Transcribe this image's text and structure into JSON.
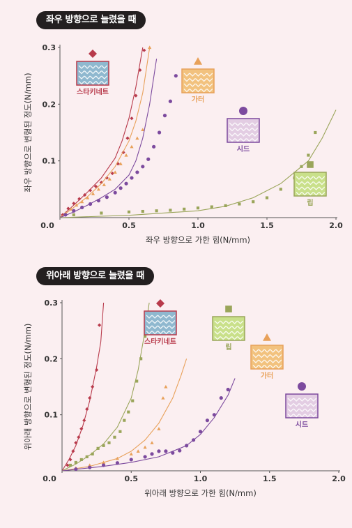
{
  "chart_data": [
    {
      "type": "scatter",
      "title": "좌우 방향으로 늘렸을 때",
      "xlabel": "좌우 방향으로 가한 힘(N/mm)",
      "ylabel": "좌우 방향으로 변형된 정도(N/mm)",
      "xlim": [
        0,
        2.0
      ],
      "ylim": [
        0,
        0.3
      ],
      "x_ticks": [
        "0.0",
        "0.5",
        "1.0",
        "1.5",
        "2.0"
      ],
      "y_ticks": [
        "0.1",
        "0.2",
        "0.3"
      ],
      "series": [
        {
          "name": "스타키네트",
          "marker": "diamond",
          "color": "#b83a4b",
          "points": [
            [
              0.02,
              0.005
            ],
            [
              0.06,
              0.016
            ],
            [
              0.1,
              0.025
            ],
            [
              0.14,
              0.033
            ],
            [
              0.18,
              0.04
            ],
            [
              0.22,
              0.048
            ],
            [
              0.26,
              0.055
            ],
            [
              0.3,
              0.062
            ],
            [
              0.34,
              0.07
            ],
            [
              0.38,
              0.078
            ],
            [
              0.42,
              0.095
            ],
            [
              0.46,
              0.115
            ],
            [
              0.49,
              0.14
            ],
            [
              0.52,
              0.175
            ],
            [
              0.55,
              0.215
            ],
            [
              0.58,
              0.26
            ],
            [
              0.61,
              0.295
            ]
          ],
          "fit": [
            [
              0.0,
              0.0
            ],
            [
              0.1,
              0.022
            ],
            [
              0.2,
              0.045
            ],
            [
              0.3,
              0.07
            ],
            [
              0.4,
              0.105
            ],
            [
              0.45,
              0.135
            ],
            [
              0.5,
              0.175
            ],
            [
              0.55,
              0.23
            ],
            [
              0.6,
              0.3
            ]
          ]
        },
        {
          "name": "가터",
          "marker": "triangle",
          "color": "#e8a15a",
          "points": [
            [
              0.04,
              0.008
            ],
            [
              0.08,
              0.015
            ],
            [
              0.12,
              0.022
            ],
            [
              0.16,
              0.028
            ],
            [
              0.2,
              0.035
            ],
            [
              0.24,
              0.042
            ],
            [
              0.28,
              0.05
            ],
            [
              0.32,
              0.058
            ],
            [
              0.36,
              0.068
            ],
            [
              0.4,
              0.08
            ],
            [
              0.44,
              0.095
            ],
            [
              0.48,
              0.11
            ],
            [
              0.52,
              0.125
            ],
            [
              0.56,
              0.14
            ],
            [
              0.6,
              0.155
            ],
            [
              0.65,
              0.3
            ]
          ],
          "fit": [
            [
              0.0,
              0.0
            ],
            [
              0.1,
              0.018
            ],
            [
              0.2,
              0.037
            ],
            [
              0.3,
              0.06
            ],
            [
              0.4,
              0.09
            ],
            [
              0.5,
              0.135
            ],
            [
              0.55,
              0.17
            ],
            [
              0.6,
              0.22
            ],
            [
              0.65,
              0.3
            ]
          ]
        },
        {
          "name": "시드",
          "marker": "circle",
          "color": "#7c4a9e",
          "points": [
            [
              0.04,
              0.005
            ],
            [
              0.1,
              0.012
            ],
            [
              0.16,
              0.018
            ],
            [
              0.22,
              0.024
            ],
            [
              0.28,
              0.03
            ],
            [
              0.34,
              0.036
            ],
            [
              0.4,
              0.044
            ],
            [
              0.44,
              0.052
            ],
            [
              0.48,
              0.06
            ],
            [
              0.52,
              0.07
            ],
            [
              0.56,
              0.08
            ],
            [
              0.6,
              0.09
            ],
            [
              0.64,
              0.103
            ],
            [
              0.68,
              0.125
            ],
            [
              0.72,
              0.15
            ],
            [
              0.76,
              0.18
            ],
            [
              0.8,
              0.205
            ],
            [
              0.84,
              0.25
            ]
          ],
          "fit": [
            [
              0.0,
              0.0
            ],
            [
              0.1,
              0.01
            ],
            [
              0.2,
              0.022
            ],
            [
              0.3,
              0.035
            ],
            [
              0.4,
              0.05
            ],
            [
              0.5,
              0.075
            ],
            [
              0.55,
              0.1
            ],
            [
              0.6,
              0.14
            ],
            [
              0.65,
              0.2
            ],
            [
              0.7,
              0.28
            ]
          ]
        },
        {
          "name": "립",
          "marker": "square",
          "color": "#9aa55a",
          "points": [
            [
              0.1,
              0.005
            ],
            [
              0.3,
              0.008
            ],
            [
              0.5,
              0.01
            ],
            [
              0.6,
              0.011
            ],
            [
              0.7,
              0.012
            ],
            [
              0.8,
              0.013
            ],
            [
              0.9,
              0.015
            ],
            [
              1.0,
              0.017
            ],
            [
              1.1,
              0.019
            ],
            [
              1.2,
              0.021
            ],
            [
              1.3,
              0.024
            ],
            [
              1.4,
              0.028
            ],
            [
              1.5,
              0.035
            ],
            [
              1.6,
              0.05
            ],
            [
              1.7,
              0.07
            ],
            [
              1.75,
              0.09
            ],
            [
              1.8,
              0.11
            ],
            [
              1.85,
              0.15
            ]
          ],
          "fit": [
            [
              0.0,
              0.0
            ],
            [
              0.5,
              0.004
            ],
            [
              1.0,
              0.012
            ],
            [
              1.2,
              0.02
            ],
            [
              1.4,
              0.035
            ],
            [
              1.6,
              0.06
            ],
            [
              1.8,
              0.1
            ],
            [
              1.9,
              0.14
            ],
            [
              2.0,
              0.19
            ]
          ]
        }
      ]
    },
    {
      "type": "scatter",
      "title": "위아래 방향으로 늘렸을 때",
      "xlabel": "위아래 방향으로 가한 힘(N/mm)",
      "ylabel": "위아래 방향으로 변형된 정도(N/mm)",
      "xlim": [
        0,
        2.0
      ],
      "ylim": [
        0,
        0.3
      ],
      "x_ticks": [
        "0.0",
        "0.5",
        "1.0",
        "1.5",
        "2.0"
      ],
      "y_ticks": [
        "0.1",
        "0.2",
        "0.3"
      ],
      "series": [
        {
          "name": "스타키네트",
          "marker": "diamond",
          "color": "#b83a4b",
          "points": [
            [
              0.04,
              0.01
            ],
            [
              0.06,
              0.02
            ],
            [
              0.08,
              0.035
            ],
            [
              0.1,
              0.05
            ],
            [
              0.12,
              0.06
            ],
            [
              0.14,
              0.075
            ],
            [
              0.16,
              0.09
            ],
            [
              0.18,
              0.11
            ],
            [
              0.2,
              0.13
            ],
            [
              0.22,
              0.15
            ],
            [
              0.25,
              0.18
            ],
            [
              0.27,
              0.26
            ]
          ],
          "fit": [
            [
              0.0,
              0.0
            ],
            [
              0.05,
              0.02
            ],
            [
              0.1,
              0.045
            ],
            [
              0.15,
              0.08
            ],
            [
              0.2,
              0.125
            ],
            [
              0.25,
              0.185
            ],
            [
              0.28,
              0.23
            ],
            [
              0.3,
              0.3
            ]
          ]
        },
        {
          "name": "립",
          "marker": "square",
          "color": "#9aa55a",
          "points": [
            [
              0.06,
              0.01
            ],
            [
              0.1,
              0.015
            ],
            [
              0.14,
              0.02
            ],
            [
              0.18,
              0.025
            ],
            [
              0.22,
              0.03
            ],
            [
              0.26,
              0.04
            ],
            [
              0.3,
              0.045
            ],
            [
              0.34,
              0.05
            ],
            [
              0.38,
              0.06
            ],
            [
              0.42,
              0.07
            ],
            [
              0.45,
              0.09
            ],
            [
              0.48,
              0.105
            ],
            [
              0.51,
              0.125
            ],
            [
              0.54,
              0.16
            ],
            [
              0.57,
              0.2
            ],
            [
              0.6,
              0.24
            ]
          ],
          "fit": [
            [
              0.0,
              0.0
            ],
            [
              0.1,
              0.012
            ],
            [
              0.2,
              0.028
            ],
            [
              0.3,
              0.048
            ],
            [
              0.4,
              0.078
            ],
            [
              0.5,
              0.13
            ],
            [
              0.55,
              0.18
            ],
            [
              0.6,
              0.25
            ],
            [
              0.63,
              0.3
            ]
          ]
        },
        {
          "name": "가터",
          "marker": "triangle",
          "color": "#e8a15a",
          "points": [
            [
              0.1,
              0.005
            ],
            [
              0.2,
              0.01
            ],
            [
              0.3,
              0.015
            ],
            [
              0.4,
              0.022
            ],
            [
              0.5,
              0.03
            ],
            [
              0.55,
              0.035
            ],
            [
              0.6,
              0.042
            ],
            [
              0.65,
              0.05
            ],
            [
              0.7,
              0.075
            ],
            [
              0.73,
              0.13
            ],
            [
              0.75,
              0.15
            ]
          ],
          "fit": [
            [
              0.0,
              0.0
            ],
            [
              0.2,
              0.008
            ],
            [
              0.4,
              0.022
            ],
            [
              0.5,
              0.035
            ],
            [
              0.6,
              0.055
            ],
            [
              0.7,
              0.085
            ],
            [
              0.8,
              0.13
            ],
            [
              0.86,
              0.17
            ],
            [
              0.9,
              0.2
            ]
          ]
        },
        {
          "name": "시드",
          "marker": "circle",
          "color": "#7c4a9e",
          "points": [
            [
              0.1,
              0.003
            ],
            [
              0.2,
              0.006
            ],
            [
              0.3,
              0.01
            ],
            [
              0.4,
              0.014
            ],
            [
              0.5,
              0.02
            ],
            [
              0.6,
              0.025
            ],
            [
              0.65,
              0.03
            ],
            [
              0.7,
              0.035
            ],
            [
              0.75,
              0.035
            ],
            [
              0.8,
              0.032
            ],
            [
              0.85,
              0.036
            ],
            [
              0.9,
              0.045
            ],
            [
              0.95,
              0.055
            ],
            [
              1.0,
              0.07
            ],
            [
              1.05,
              0.09
            ],
            [
              1.1,
              0.1
            ],
            [
              1.15,
              0.13
            ],
            [
              1.2,
              0.145
            ]
          ],
          "fit": [
            [
              0.0,
              0.0
            ],
            [
              0.3,
              0.008
            ],
            [
              0.5,
              0.015
            ],
            [
              0.7,
              0.025
            ],
            [
              0.9,
              0.045
            ],
            [
              1.0,
              0.065
            ],
            [
              1.1,
              0.095
            ],
            [
              1.2,
              0.135
            ],
            [
              1.25,
              0.165
            ]
          ]
        }
      ]
    }
  ],
  "swatches": [
    [
      {
        "name": "스타키네트",
        "marker": "diamond",
        "color": "#b83a4b",
        "fill": "#8fb8cf",
        "border": "#b83a4b"
      },
      {
        "name": "가터",
        "marker": "triangle",
        "color": "#e8a15a",
        "fill": "#f2c27e",
        "border": "#e8a15a"
      },
      {
        "name": "시드",
        "marker": "circle",
        "color": "#7c4a9e",
        "fill": "#e3cde3",
        "border": "#7c4a9e"
      },
      {
        "name": "립",
        "marker": "square",
        "color": "#9aa55a",
        "fill": "#c9e08a",
        "border": "#9aa55a"
      }
    ],
    [
      {
        "name": "스타키네트",
        "marker": "diamond",
        "color": "#b83a4b",
        "fill": "#8fb8cf",
        "border": "#b83a4b"
      },
      {
        "name": "립",
        "marker": "square",
        "color": "#9aa55a",
        "fill": "#c9e08a",
        "border": "#9aa55a"
      },
      {
        "name": "가터",
        "marker": "triangle",
        "color": "#e8a15a",
        "fill": "#f2c27e",
        "border": "#e8a15a"
      },
      {
        "name": "시드",
        "marker": "circle",
        "color": "#7c4a9e",
        "fill": "#e3cde3",
        "border": "#7c4a9e"
      }
    ]
  ]
}
